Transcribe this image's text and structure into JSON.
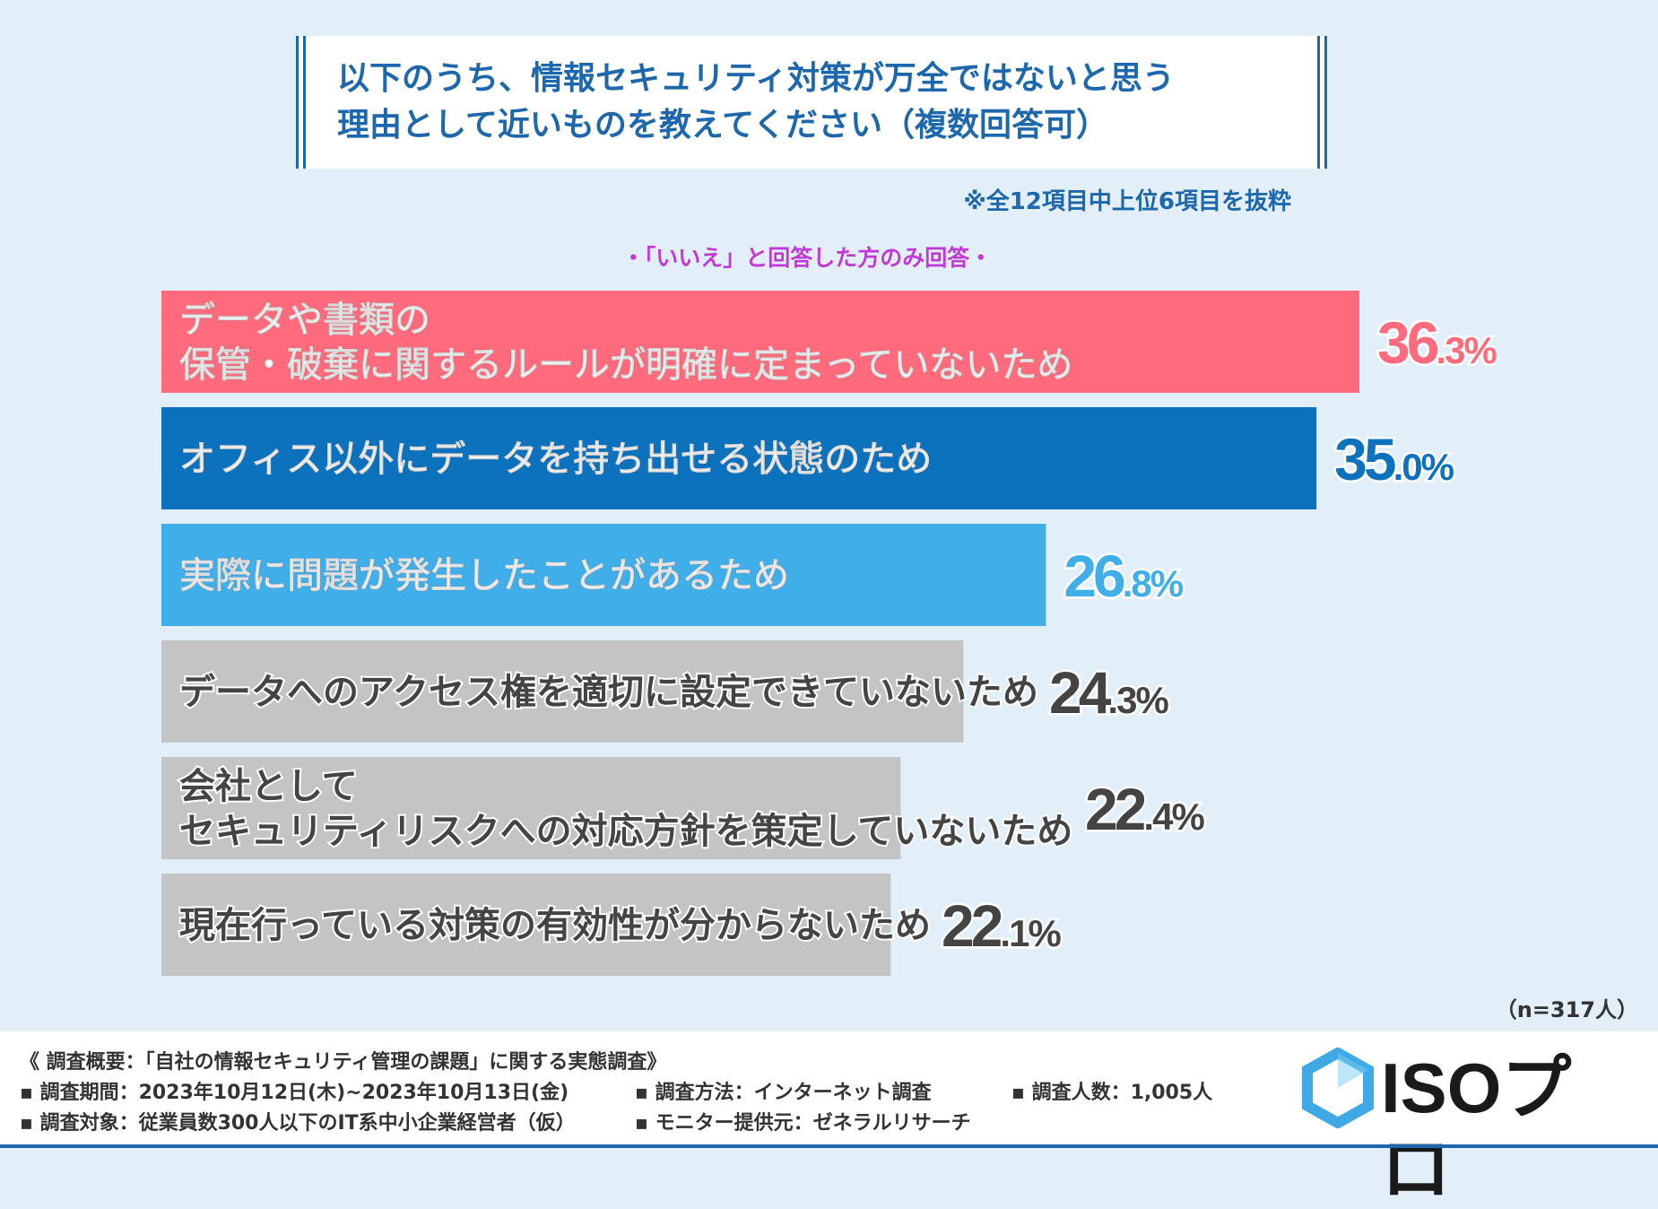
{
  "title": {
    "line1": "以下のうち、情報セキュリティ対策が万全ではないと思う",
    "line2": "理由として近いものを教えてください（複数回答可）"
  },
  "note": "※全12項目中上位6項目を抜粋",
  "subtitle": "・「いいえ」と回答した方のみ回答・",
  "colors": {
    "pink": "#ff6b7c",
    "dark_blue": "#0d72bd",
    "light_blue": "#40aee8",
    "gray": "#c4c4c4",
    "title_blue": "#1d67ad"
  },
  "chart_data": {
    "type": "bar",
    "orientation": "horizontal",
    "unit": "%",
    "categories": [
      [
        "データや書類の",
        "保管・破棄に関するルールが明確に定まっていないため"
      ],
      [
        "オフィス以外にデータを持ち出せる状態のため"
      ],
      [
        "実際に問題が発生したことがあるため"
      ],
      [
        "データへのアクセス権を適切に設定できていないため"
      ],
      [
        "会社として",
        "セキュリティリスクへの対応方針を策定していないため"
      ],
      [
        "現在行っている対策の有効性が分からないため"
      ]
    ],
    "values": [
      36.3,
      35.0,
      26.8,
      24.3,
      22.4,
      22.1
    ],
    "value_labels": [
      "36.3%",
      "35.0%",
      "26.8%",
      "24.3%",
      "22.4%",
      "22.1%"
    ],
    "bar_colors": [
      "#ff6b7c",
      "#0d72bd",
      "#40aee8",
      "#c4c4c4",
      "#c4c4c4",
      "#c4c4c4"
    ],
    "label_colors": [
      "#ffffff",
      "#ffffff",
      "#ffffff",
      "#444444",
      "#444444",
      "#444444"
    ],
    "value_colors": [
      "#ff6b7c",
      "#0d72bd",
      "#40aee8",
      "#444444",
      "#444444",
      "#444444"
    ]
  },
  "n_label": "（n=317人）",
  "footer": {
    "summary": "《 調査概要：「自社の情報セキュリティ管理の課題」に関する実態調査》",
    "period": "▪ 調査期間：2023年10月12日(木)~2023年10月13日(金)",
    "method": "▪ 調査方法：インターネット調査",
    "count": "▪ 調査人数：1,005人",
    "target": "▪ 調査対象：従業員数300人以下のIT系中小企業経営者（仮）",
    "provider": "▪ モニター提供元：ゼネラルリサーチ",
    "logo": "ISOプロ"
  }
}
